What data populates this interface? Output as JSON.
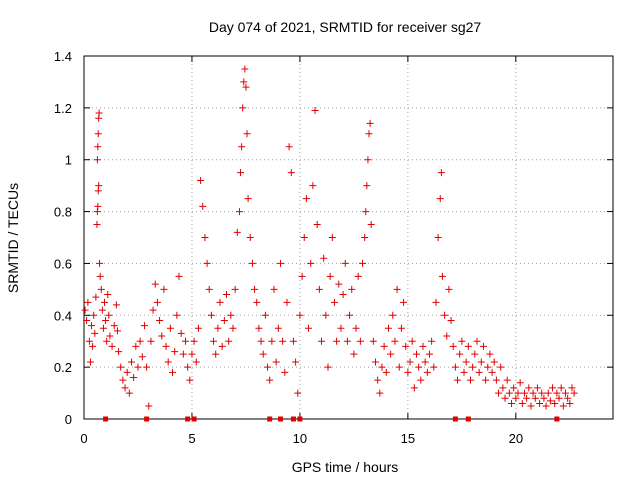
{
  "chart_data": {
    "type": "scatter",
    "title": "Day 074 of 2021, SRMTID for receiver sg27",
    "xlabel": "GPS time / hours",
    "ylabel": "SRMTID / TECUs",
    "xlim": [
      0,
      24.5
    ],
    "ylim": [
      0,
      1.4
    ],
    "xticks": [
      0,
      5,
      10,
      15,
      20
    ],
    "yticks": [
      0,
      0.2,
      0.4,
      0.6,
      0.8,
      1,
      1.2,
      1.4
    ],
    "xtick_labels": [
      "0",
      "5",
      "10",
      "15",
      "20"
    ],
    "ytick_labels": [
      "0",
      "0.2",
      "0.4",
      "0.6",
      "0.8",
      "1",
      "1.2",
      "1.4"
    ],
    "grid": true,
    "marker": "plus",
    "color": "#e00000",
    "series": [
      {
        "name": "SRMTID",
        "points": [
          [
            0.05,
            0.42
          ],
          [
            0.12,
            0.38
          ],
          [
            0.18,
            0.45
          ],
          [
            0.25,
            0.3
          ],
          [
            0.3,
            0.22
          ],
          [
            0.35,
            0.36
          ],
          [
            0.4,
            0.28
          ],
          [
            0.45,
            0.4
          ],
          [
            0.5,
            0.33
          ],
          [
            0.55,
            0.47
          ],
          [
            0.6,
            0.75
          ],
          [
            0.62,
            0.8
          ],
          [
            0.64,
            0.82
          ],
          [
            0.66,
            0.88
          ],
          [
            0.68,
            0.9
          ],
          [
            0.62,
            1.0
          ],
          [
            0.64,
            1.05
          ],
          [
            0.66,
            1.1
          ],
          [
            0.68,
            1.16
          ],
          [
            0.7,
            1.18
          ],
          [
            0.72,
            0.6
          ],
          [
            0.75,
            0.55
          ],
          [
            0.8,
            0.5
          ],
          [
            0.85,
            0.42
          ],
          [
            0.9,
            0.35
          ],
          [
            0.95,
            0.45
          ],
          [
            1.0,
            0.38
          ],
          [
            1.05,
            0.3
          ],
          [
            1.1,
            0.48
          ],
          [
            1.15,
            0.4
          ],
          [
            1.2,
            0.32
          ],
          [
            1.3,
            0.28
          ],
          [
            1.4,
            0.36
          ],
          [
            1.5,
            0.44
          ],
          [
            1.55,
            0.34
          ],
          [
            1.6,
            0.26
          ],
          [
            1.7,
            0.2
          ],
          [
            1.8,
            0.15
          ],
          [
            1.9,
            0.12
          ],
          [
            2.0,
            0.18
          ],
          [
            2.1,
            0.1
          ],
          [
            2.2,
            0.22
          ],
          [
            2.3,
            0.16
          ],
          [
            2.4,
            0.28
          ],
          [
            2.5,
            0.2
          ],
          [
            2.6,
            0.3
          ],
          [
            2.7,
            0.24
          ],
          [
            2.8,
            0.36
          ],
          [
            2.9,
            0.2
          ],
          [
            3.0,
            0.05
          ],
          [
            3.1,
            0.3
          ],
          [
            3.2,
            0.42
          ],
          [
            3.3,
            0.52
          ],
          [
            3.4,
            0.45
          ],
          [
            3.5,
            0.38
          ],
          [
            3.6,
            0.32
          ],
          [
            3.7,
            0.5
          ],
          [
            3.8,
            0.28
          ],
          [
            3.9,
            0.22
          ],
          [
            4.0,
            0.35
          ],
          [
            4.1,
            0.18
          ],
          [
            4.2,
            0.26
          ],
          [
            4.3,
            0.4
          ],
          [
            4.4,
            0.55
          ],
          [
            4.5,
            0.33
          ],
          [
            4.6,
            0.25
          ],
          [
            4.7,
            0.3
          ],
          [
            4.8,
            0.2
          ],
          [
            4.9,
            0.15
          ],
          [
            5.0,
            0.25
          ],
          [
            5.1,
            0.3
          ],
          [
            5.2,
            0.22
          ],
          [
            5.3,
            0.35
          ],
          [
            5.4,
            0.92
          ],
          [
            5.5,
            0.82
          ],
          [
            5.6,
            0.7
          ],
          [
            5.7,
            0.6
          ],
          [
            5.8,
            0.5
          ],
          [
            5.9,
            0.4
          ],
          [
            6.0,
            0.3
          ],
          [
            6.1,
            0.25
          ],
          [
            6.2,
            0.35
          ],
          [
            6.3,
            0.45
          ],
          [
            6.4,
            0.28
          ],
          [
            6.5,
            0.38
          ],
          [
            6.6,
            0.48
          ],
          [
            6.7,
            0.3
          ],
          [
            6.8,
            0.4
          ],
          [
            6.9,
            0.35
          ],
          [
            7.0,
            0.5
          ],
          [
            7.1,
            0.72
          ],
          [
            7.2,
            0.8
          ],
          [
            7.25,
            0.95
          ],
          [
            7.3,
            1.05
          ],
          [
            7.35,
            1.2
          ],
          [
            7.4,
            1.3
          ],
          [
            7.45,
            1.35
          ],
          [
            7.5,
            1.28
          ],
          [
            7.55,
            1.1
          ],
          [
            7.6,
            0.85
          ],
          [
            7.7,
            0.7
          ],
          [
            7.8,
            0.6
          ],
          [
            7.9,
            0.5
          ],
          [
            8.0,
            0.45
          ],
          [
            8.1,
            0.35
          ],
          [
            8.2,
            0.3
          ],
          [
            8.3,
            0.25
          ],
          [
            8.4,
            0.4
          ],
          [
            8.5,
            0.2
          ],
          [
            8.6,
            0.15
          ],
          [
            8.7,
            0.3
          ],
          [
            8.8,
            0.5
          ],
          [
            8.9,
            0.22
          ],
          [
            9.0,
            0.35
          ],
          [
            9.1,
            0.6
          ],
          [
            9.2,
            0.3
          ],
          [
            9.3,
            0.18
          ],
          [
            9.4,
            0.45
          ],
          [
            9.5,
            1.05
          ],
          [
            9.6,
            0.95
          ],
          [
            9.7,
            0.3
          ],
          [
            9.8,
            0.22
          ],
          [
            9.9,
            0.1
          ],
          [
            10.0,
            0.4
          ],
          [
            10.1,
            0.55
          ],
          [
            10.2,
            0.7
          ],
          [
            10.3,
            0.85
          ],
          [
            10.4,
            0.35
          ],
          [
            10.5,
            0.6
          ],
          [
            10.6,
            0.9
          ],
          [
            10.7,
            1.19
          ],
          [
            10.8,
            0.75
          ],
          [
            10.9,
            0.5
          ],
          [
            11.0,
            0.3
          ],
          [
            11.1,
            0.62
          ],
          [
            11.2,
            0.4
          ],
          [
            11.3,
            0.2
          ],
          [
            11.4,
            0.55
          ],
          [
            11.5,
            0.7
          ],
          [
            11.6,
            0.45
          ],
          [
            11.7,
            0.3
          ],
          [
            11.8,
            0.52
          ],
          [
            11.9,
            0.35
          ],
          [
            12.0,
            0.48
          ],
          [
            12.1,
            0.6
          ],
          [
            12.2,
            0.3
          ],
          [
            12.3,
            0.4
          ],
          [
            12.4,
            0.5
          ],
          [
            12.5,
            0.25
          ],
          [
            12.6,
            0.35
          ],
          [
            12.7,
            0.55
          ],
          [
            12.8,
            0.3
          ],
          [
            12.9,
            0.6
          ],
          [
            13.0,
            0.7
          ],
          [
            13.05,
            0.8
          ],
          [
            13.1,
            0.9
          ],
          [
            13.15,
            1.0
          ],
          [
            13.2,
            1.1
          ],
          [
            13.25,
            1.14
          ],
          [
            13.3,
            0.75
          ],
          [
            13.4,
            0.3
          ],
          [
            13.5,
            0.22
          ],
          [
            13.6,
            0.15
          ],
          [
            13.7,
            0.1
          ],
          [
            13.8,
            0.2
          ],
          [
            13.9,
            0.28
          ],
          [
            14.0,
            0.18
          ],
          [
            14.1,
            0.35
          ],
          [
            14.2,
            0.25
          ],
          [
            14.3,
            0.4
          ],
          [
            14.4,
            0.3
          ],
          [
            14.5,
            0.5
          ],
          [
            14.6,
            0.2
          ],
          [
            14.7,
            0.35
          ],
          [
            14.8,
            0.45
          ],
          [
            14.9,
            0.28
          ],
          [
            15.0,
            0.18
          ],
          [
            15.1,
            0.22
          ],
          [
            15.2,
            0.3
          ],
          [
            15.3,
            0.12
          ],
          [
            15.4,
            0.25
          ],
          [
            15.5,
            0.2
          ],
          [
            15.6,
            0.15
          ],
          [
            15.7,
            0.28
          ],
          [
            15.8,
            0.22
          ],
          [
            15.9,
            0.18
          ],
          [
            16.0,
            0.25
          ],
          [
            16.1,
            0.3
          ],
          [
            16.2,
            0.2
          ],
          [
            16.3,
            0.45
          ],
          [
            16.4,
            0.7
          ],
          [
            16.5,
            0.85
          ],
          [
            16.55,
            0.95
          ],
          [
            16.6,
            0.55
          ],
          [
            16.7,
            0.4
          ],
          [
            16.8,
            0.32
          ],
          [
            16.9,
            0.5
          ],
          [
            17.0,
            0.38
          ],
          [
            17.1,
            0.28
          ],
          [
            17.2,
            0.2
          ],
          [
            17.3,
            0.15
          ],
          [
            17.4,
            0.25
          ],
          [
            17.5,
            0.3
          ],
          [
            17.6,
            0.18
          ],
          [
            17.7,
            0.22
          ],
          [
            17.8,
            0.28
          ],
          [
            17.9,
            0.15
          ],
          [
            18.0,
            0.2
          ],
          [
            18.1,
            0.25
          ],
          [
            18.2,
            0.3
          ],
          [
            18.3,
            0.18
          ],
          [
            18.4,
            0.22
          ],
          [
            18.5,
            0.28
          ],
          [
            18.6,
            0.15
          ],
          [
            18.7,
            0.2
          ],
          [
            18.8,
            0.25
          ],
          [
            18.9,
            0.18
          ],
          [
            19.0,
            0.22
          ],
          [
            19.1,
            0.15
          ],
          [
            19.2,
            0.1
          ],
          [
            19.3,
            0.2
          ],
          [
            19.4,
            0.12
          ],
          [
            19.5,
            0.08
          ],
          [
            19.6,
            0.15
          ],
          [
            19.7,
            0.1
          ],
          [
            19.8,
            0.06
          ],
          [
            19.9,
            0.12
          ],
          [
            20.0,
            0.08
          ],
          [
            20.1,
            0.1
          ],
          [
            20.2,
            0.14
          ],
          [
            20.3,
            0.06
          ],
          [
            20.4,
            0.1
          ],
          [
            20.5,
            0.08
          ],
          [
            20.6,
            0.12
          ],
          [
            20.7,
            0.05
          ],
          [
            20.8,
            0.1
          ],
          [
            20.9,
            0.08
          ],
          [
            21.0,
            0.12
          ],
          [
            21.1,
            0.06
          ],
          [
            21.2,
            0.1
          ],
          [
            21.3,
            0.08
          ],
          [
            21.4,
            0.05
          ],
          [
            21.5,
            0.1
          ],
          [
            21.6,
            0.07
          ],
          [
            21.7,
            0.12
          ],
          [
            21.8,
            0.06
          ],
          [
            21.9,
            0.1
          ],
          [
            22.0,
            0.08
          ],
          [
            22.1,
            0.12
          ],
          [
            22.2,
            0.05
          ],
          [
            22.3,
            0.1
          ],
          [
            22.4,
            0.08
          ],
          [
            22.5,
            0.06
          ],
          [
            22.6,
            0.12
          ],
          [
            22.7,
            0.1
          ]
        ]
      },
      {
        "name": "gaps",
        "marker": "square",
        "points": [
          [
            1.0,
            0
          ],
          [
            2.9,
            0
          ],
          [
            4.8,
            0
          ],
          [
            5.1,
            0
          ],
          [
            8.6,
            0
          ],
          [
            9.1,
            0
          ],
          [
            9.7,
            0
          ],
          [
            10.0,
            0
          ],
          [
            17.2,
            0
          ],
          [
            17.8,
            0
          ],
          [
            21.9,
            0
          ]
        ]
      }
    ]
  }
}
